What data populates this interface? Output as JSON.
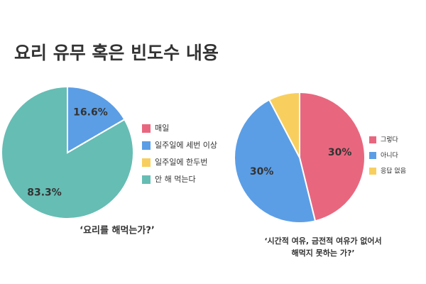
{
  "title": "요리 유무 혹은 빈도수 내용",
  "chart_data": [
    {
      "type": "pie",
      "title": "‘요리를 해먹는가?’",
      "categories": [
        "매일",
        "일주일에 세번 이상",
        "일주일에 한두번",
        "안 해 먹는다"
      ],
      "values": [
        0,
        16.6,
        0,
        83.3
      ],
      "value_labels": [
        null,
        "16.6%",
        null,
        "83.3%"
      ],
      "colors": [
        "#e8677f",
        "#5b9ee6",
        "#f8cf5e",
        "#66bdb4"
      ]
    },
    {
      "type": "pie",
      "title": [
        "‘시간적 여유, 금전적 여유가 없어서",
        "해먹지 못하는 가?’"
      ],
      "categories": [
        "그렇다",
        "아니다",
        "응답 없음"
      ],
      "values": [
        30,
        30,
        5
      ],
      "value_labels": [
        "30%",
        "30%",
        null
      ],
      "colors": [
        "#e8677f",
        "#5b9ee6",
        "#f8cf5e"
      ]
    }
  ]
}
